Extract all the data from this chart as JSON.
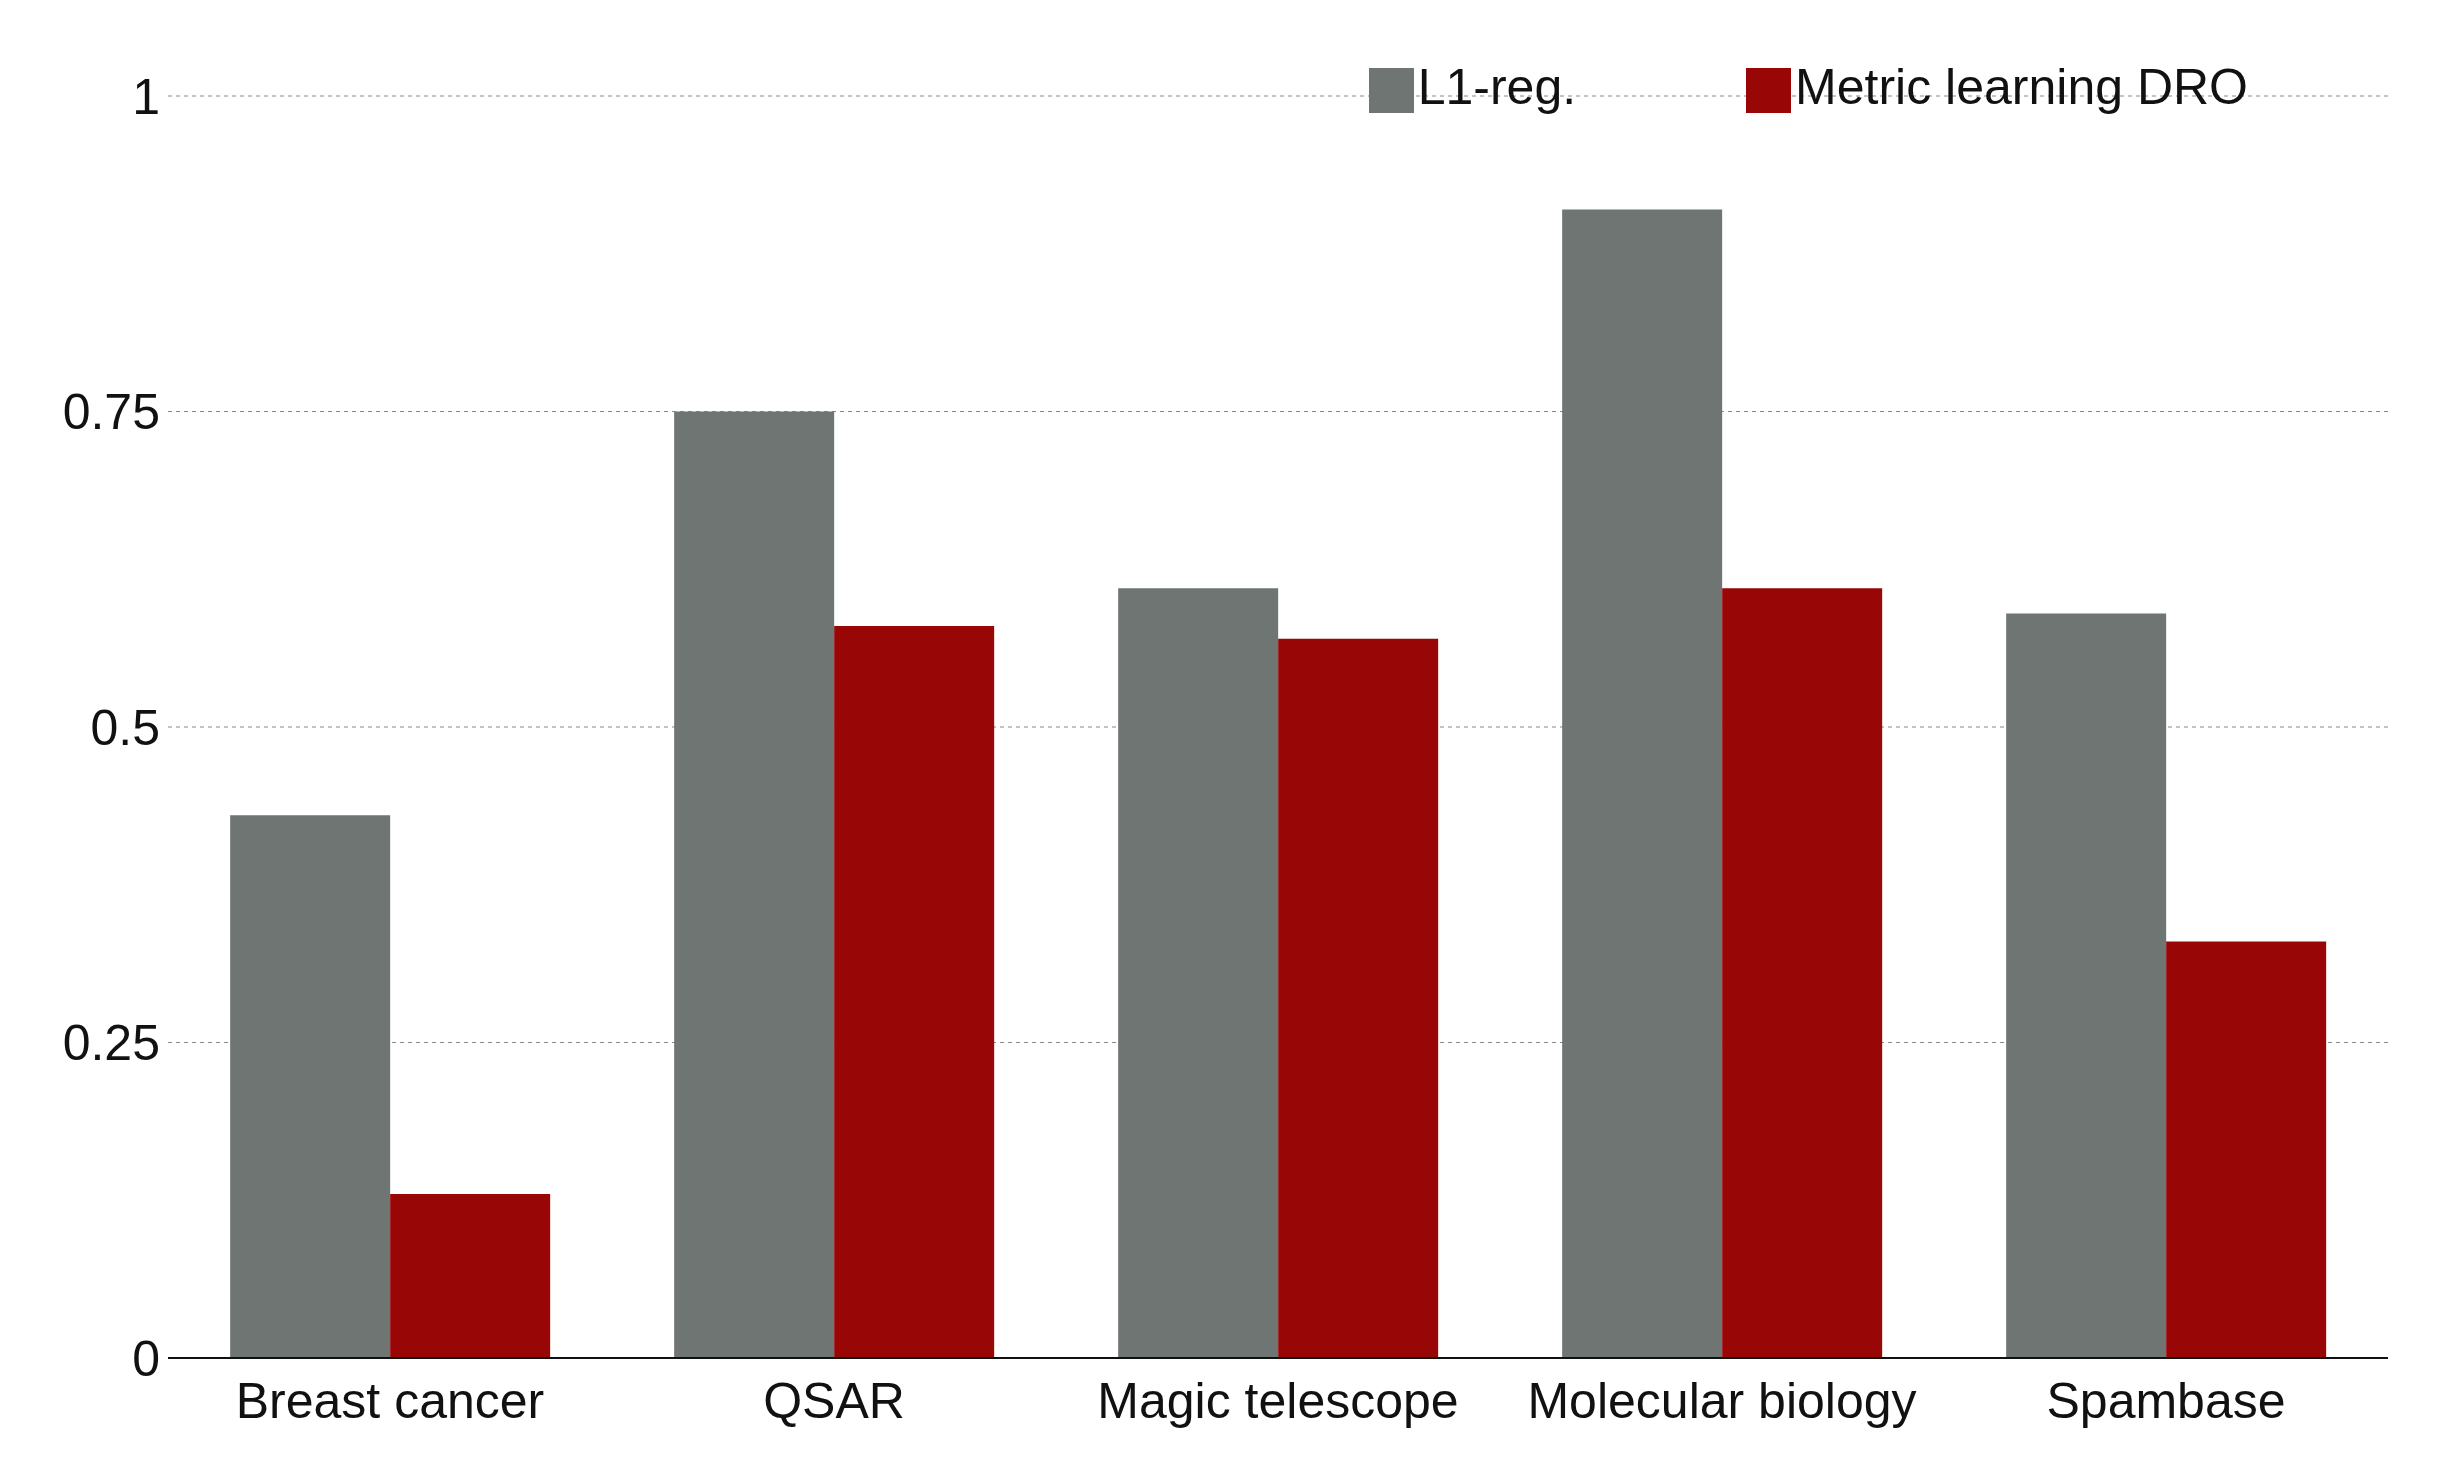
{
  "chart_data": {
    "type": "bar",
    "categories": [
      "Breast cancer",
      "QSAR",
      "Magic telescope",
      "Molecular biology",
      "Spambase"
    ],
    "series": [
      {
        "name": "L1-reg.",
        "color": "#6f7572",
        "values": [
          0.43,
          0.75,
          0.61,
          0.91,
          0.59
        ]
      },
      {
        "name": "Metric learning DRO",
        "color": "#990606",
        "values": [
          0.13,
          0.58,
          0.57,
          0.61,
          0.33
        ]
      }
    ],
    "ylim": [
      0,
      1
    ],
    "yticks": [
      0,
      0.25,
      0.5,
      0.75,
      1
    ],
    "grid": "y",
    "legend": "top right"
  }
}
